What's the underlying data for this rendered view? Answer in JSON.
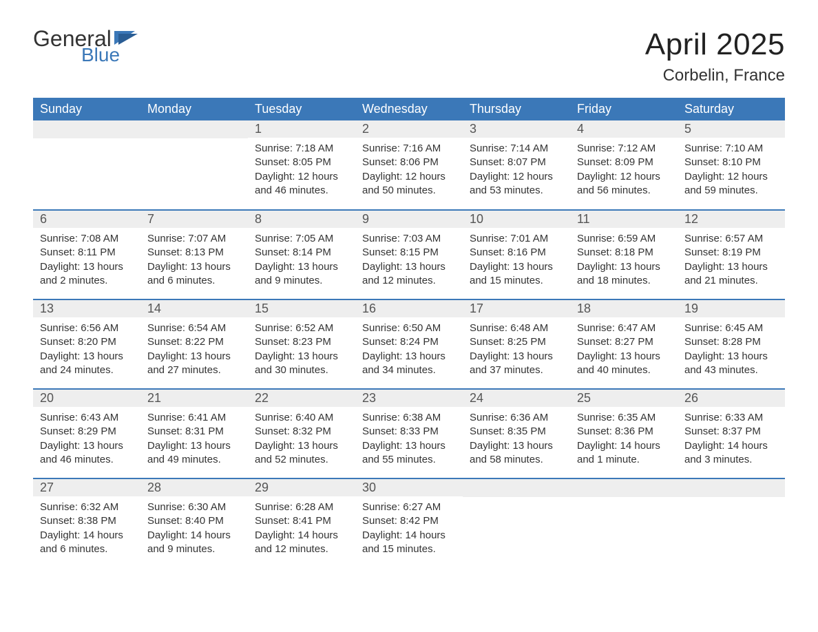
{
  "logo": {
    "word1": "General",
    "word2": "Blue"
  },
  "title": "April 2025",
  "location": "Corbelin, France",
  "colors": {
    "header_bg": "#3b78b8",
    "header_text": "#ffffff",
    "daynum_bg": "#eeeeee",
    "text": "#333333",
    "row_border": "#3b78b8",
    "background": "#ffffff"
  },
  "typography": {
    "title_fontsize": 44,
    "location_fontsize": 24,
    "header_fontsize": 18,
    "daynum_fontsize": 18,
    "body_fontsize": 15
  },
  "layout": {
    "columns": 7,
    "rows": 5,
    "leading_blanks": 2
  },
  "week_headers": [
    "Sunday",
    "Monday",
    "Tuesday",
    "Wednesday",
    "Thursday",
    "Friday",
    "Saturday"
  ],
  "days": [
    {
      "n": 1,
      "sunrise": "7:18 AM",
      "sunset": "8:05 PM",
      "daylight": "12 hours and 46 minutes."
    },
    {
      "n": 2,
      "sunrise": "7:16 AM",
      "sunset": "8:06 PM",
      "daylight": "12 hours and 50 minutes."
    },
    {
      "n": 3,
      "sunrise": "7:14 AM",
      "sunset": "8:07 PM",
      "daylight": "12 hours and 53 minutes."
    },
    {
      "n": 4,
      "sunrise": "7:12 AM",
      "sunset": "8:09 PM",
      "daylight": "12 hours and 56 minutes."
    },
    {
      "n": 5,
      "sunrise": "7:10 AM",
      "sunset": "8:10 PM",
      "daylight": "12 hours and 59 minutes."
    },
    {
      "n": 6,
      "sunrise": "7:08 AM",
      "sunset": "8:11 PM",
      "daylight": "13 hours and 2 minutes."
    },
    {
      "n": 7,
      "sunrise": "7:07 AM",
      "sunset": "8:13 PM",
      "daylight": "13 hours and 6 minutes."
    },
    {
      "n": 8,
      "sunrise": "7:05 AM",
      "sunset": "8:14 PM",
      "daylight": "13 hours and 9 minutes."
    },
    {
      "n": 9,
      "sunrise": "7:03 AM",
      "sunset": "8:15 PM",
      "daylight": "13 hours and 12 minutes."
    },
    {
      "n": 10,
      "sunrise": "7:01 AM",
      "sunset": "8:16 PM",
      "daylight": "13 hours and 15 minutes."
    },
    {
      "n": 11,
      "sunrise": "6:59 AM",
      "sunset": "8:18 PM",
      "daylight": "13 hours and 18 minutes."
    },
    {
      "n": 12,
      "sunrise": "6:57 AM",
      "sunset": "8:19 PM",
      "daylight": "13 hours and 21 minutes."
    },
    {
      "n": 13,
      "sunrise": "6:56 AM",
      "sunset": "8:20 PM",
      "daylight": "13 hours and 24 minutes."
    },
    {
      "n": 14,
      "sunrise": "6:54 AM",
      "sunset": "8:22 PM",
      "daylight": "13 hours and 27 minutes."
    },
    {
      "n": 15,
      "sunrise": "6:52 AM",
      "sunset": "8:23 PM",
      "daylight": "13 hours and 30 minutes."
    },
    {
      "n": 16,
      "sunrise": "6:50 AM",
      "sunset": "8:24 PM",
      "daylight": "13 hours and 34 minutes."
    },
    {
      "n": 17,
      "sunrise": "6:48 AM",
      "sunset": "8:25 PM",
      "daylight": "13 hours and 37 minutes."
    },
    {
      "n": 18,
      "sunrise": "6:47 AM",
      "sunset": "8:27 PM",
      "daylight": "13 hours and 40 minutes."
    },
    {
      "n": 19,
      "sunrise": "6:45 AM",
      "sunset": "8:28 PM",
      "daylight": "13 hours and 43 minutes."
    },
    {
      "n": 20,
      "sunrise": "6:43 AM",
      "sunset": "8:29 PM",
      "daylight": "13 hours and 46 minutes."
    },
    {
      "n": 21,
      "sunrise": "6:41 AM",
      "sunset": "8:31 PM",
      "daylight": "13 hours and 49 minutes."
    },
    {
      "n": 22,
      "sunrise": "6:40 AM",
      "sunset": "8:32 PM",
      "daylight": "13 hours and 52 minutes."
    },
    {
      "n": 23,
      "sunrise": "6:38 AM",
      "sunset": "8:33 PM",
      "daylight": "13 hours and 55 minutes."
    },
    {
      "n": 24,
      "sunrise": "6:36 AM",
      "sunset": "8:35 PM",
      "daylight": "13 hours and 58 minutes."
    },
    {
      "n": 25,
      "sunrise": "6:35 AM",
      "sunset": "8:36 PM",
      "daylight": "14 hours and 1 minute."
    },
    {
      "n": 26,
      "sunrise": "6:33 AM",
      "sunset": "8:37 PM",
      "daylight": "14 hours and 3 minutes."
    },
    {
      "n": 27,
      "sunrise": "6:32 AM",
      "sunset": "8:38 PM",
      "daylight": "14 hours and 6 minutes."
    },
    {
      "n": 28,
      "sunrise": "6:30 AM",
      "sunset": "8:40 PM",
      "daylight": "14 hours and 9 minutes."
    },
    {
      "n": 29,
      "sunrise": "6:28 AM",
      "sunset": "8:41 PM",
      "daylight": "14 hours and 12 minutes."
    },
    {
      "n": 30,
      "sunrise": "6:27 AM",
      "sunset": "8:42 PM",
      "daylight": "14 hours and 15 minutes."
    }
  ],
  "labels": {
    "sunrise": "Sunrise:",
    "sunset": "Sunset:",
    "daylight": "Daylight:"
  }
}
